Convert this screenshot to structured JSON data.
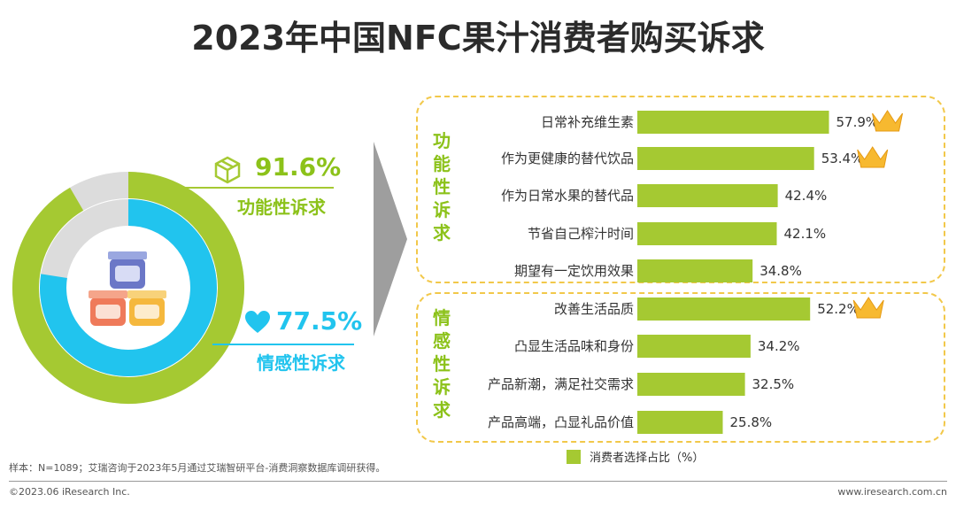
{
  "title": "2023年中国NFC果汁消费者购买诉求",
  "donut": {
    "functional": {
      "pct_label": "91.6%",
      "value": 91.6,
      "label": "功能性诉求",
      "color": "#a5c932"
    },
    "emotional": {
      "pct_label": "77.5%",
      "value": 77.5,
      "label": "情感性诉求",
      "color": "#21c4ee"
    }
  },
  "groups": {
    "functional_label": "功能性诉求",
    "emotional_label": "情感性诉求"
  },
  "chart_data": {
    "type": "bar",
    "categories": [
      "日常补充维生素",
      "作为更健康的替代饮品",
      "作为日常水果的替代品",
      "节省自己榨汁时间",
      "期望有一定饮用效果",
      "改善生活品质",
      "凸显生活品味和身份",
      "产品新潮，满足社交需求",
      "产品高端，凸显礼品价值"
    ],
    "values": [
      57.9,
      53.4,
      42.4,
      42.1,
      34.8,
      52.2,
      34.2,
      32.5,
      25.8
    ],
    "value_labels": [
      "57.9%",
      "53.4%",
      "42.4%",
      "42.1%",
      "34.8%",
      "52.2%",
      "34.2%",
      "32.5%",
      "25.8%"
    ],
    "crowned": [
      true,
      true,
      false,
      false,
      false,
      true,
      false,
      false,
      false
    ],
    "legend": "消费者选择占比（%）",
    "bar_color": "#a5c932",
    "orientation": "horizontal"
  },
  "footer": {
    "note": "样本：N=1089；艾瑞咨询于2023年5月通过艾瑞智研平台-消费洞察数据库调研获得。",
    "copyright": "©2023.06 iResearch Inc.",
    "website": "www.iresearch.com.cn"
  }
}
